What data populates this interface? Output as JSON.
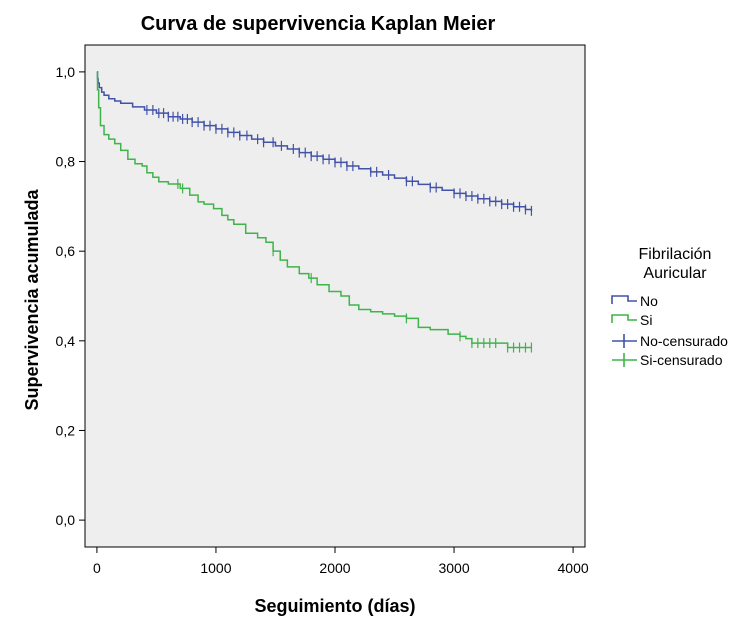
{
  "chart_data": {
    "type": "line",
    "title": "Curva de supervivencia Kaplan Meier",
    "xlabel": "Seguimiento (días)",
    "ylabel": "Supervivencia acumulada",
    "xlim": [
      -100,
      4100
    ],
    "ylim": [
      -0.06,
      1.06
    ],
    "x_ticks": [
      0,
      1000,
      2000,
      3000,
      4000
    ],
    "x_tick_labels": [
      "0",
      "1000",
      "2000",
      "3000",
      "4000"
    ],
    "y_ticks": [
      0.0,
      0.2,
      0.4,
      0.6,
      0.8,
      1.0
    ],
    "y_tick_labels": [
      "0,0",
      "0,2",
      "0,4",
      "0,6",
      "0,8",
      "1,0"
    ],
    "grid": false,
    "legend": {
      "title_lines": [
        "Fibrilación",
        "Auricular"
      ],
      "placement": "right",
      "entries": [
        "No",
        "Si",
        "No-censurado",
        "Si-censurado"
      ]
    },
    "series": [
      {
        "name": "No",
        "color": "#4152a8",
        "step": true,
        "x": [
          0,
          5,
          10,
          20,
          40,
          60,
          100,
          150,
          200,
          300,
          400,
          500,
          600,
          700,
          800,
          900,
          1000,
          1100,
          1200,
          1300,
          1400,
          1500,
          1600,
          1700,
          1800,
          1900,
          2000,
          2100,
          2200,
          2300,
          2400,
          2500,
          2600,
          2700,
          2800,
          2900,
          3000,
          3100,
          3200,
          3300,
          3400,
          3500,
          3600,
          3650
        ],
        "y": [
          1.0,
          0.985,
          0.975,
          0.965,
          0.955,
          0.948,
          0.94,
          0.935,
          0.93,
          0.922,
          0.915,
          0.908,
          0.9,
          0.895,
          0.888,
          0.88,
          0.873,
          0.865,
          0.858,
          0.85,
          0.843,
          0.835,
          0.828,
          0.82,
          0.812,
          0.805,
          0.798,
          0.79,
          0.784,
          0.777,
          0.77,
          0.763,
          0.756,
          0.749,
          0.742,
          0.736,
          0.729,
          0.723,
          0.717,
          0.711,
          0.705,
          0.699,
          0.693,
          0.69
        ]
      },
      {
        "name": "Si",
        "color": "#3fb44a",
        "step": true,
        "x": [
          0,
          5,
          15,
          30,
          60,
          100,
          150,
          200,
          260,
          320,
          380,
          420,
          470,
          520,
          600,
          700,
          780,
          850,
          900,
          980,
          1050,
          1100,
          1150,
          1250,
          1350,
          1420,
          1480,
          1540,
          1600,
          1700,
          1780,
          1850,
          1950,
          2050,
          2120,
          2200,
          2300,
          2400,
          2500,
          2600,
          2700,
          2800,
          2950,
          3050,
          3100,
          3150,
          3300,
          3450,
          3650
        ],
        "y": [
          1.0,
          0.96,
          0.92,
          0.88,
          0.86,
          0.85,
          0.84,
          0.825,
          0.805,
          0.795,
          0.79,
          0.775,
          0.765,
          0.755,
          0.75,
          0.74,
          0.725,
          0.71,
          0.705,
          0.695,
          0.68,
          0.67,
          0.66,
          0.64,
          0.63,
          0.62,
          0.6,
          0.58,
          0.565,
          0.55,
          0.54,
          0.525,
          0.51,
          0.5,
          0.48,
          0.47,
          0.465,
          0.46,
          0.455,
          0.45,
          0.43,
          0.425,
          0.415,
          0.41,
          0.405,
          0.395,
          0.395,
          0.385,
          0.385
        ]
      }
    ],
    "censored": [
      {
        "name": "No-censurado",
        "color": "#4152a8",
        "x": [
          420,
          470,
          520,
          560,
          600,
          640,
          680,
          720,
          760,
          800,
          850,
          900,
          950,
          1000,
          1050,
          1100,
          1150,
          1200,
          1260,
          1350,
          1400,
          1480,
          1550,
          1650,
          1700,
          1750,
          1800,
          1850,
          1900,
          1950,
          2000,
          2050,
          2100,
          2150,
          2300,
          2350,
          2450,
          2600,
          2650,
          2800,
          2850,
          3000,
          3050,
          3100,
          3150,
          3200,
          3250,
          3300,
          3350,
          3400,
          3450,
          3500,
          3550,
          3600,
          3650
        ]
      },
      {
        "name": "Si-censurado",
        "color": "#3fb44a",
        "x": [
          680,
          720,
          1480,
          1800,
          2600,
          3050,
          3150,
          3200,
          3250,
          3300,
          3350,
          3450,
          3500,
          3550,
          3600,
          3650
        ]
      }
    ]
  }
}
